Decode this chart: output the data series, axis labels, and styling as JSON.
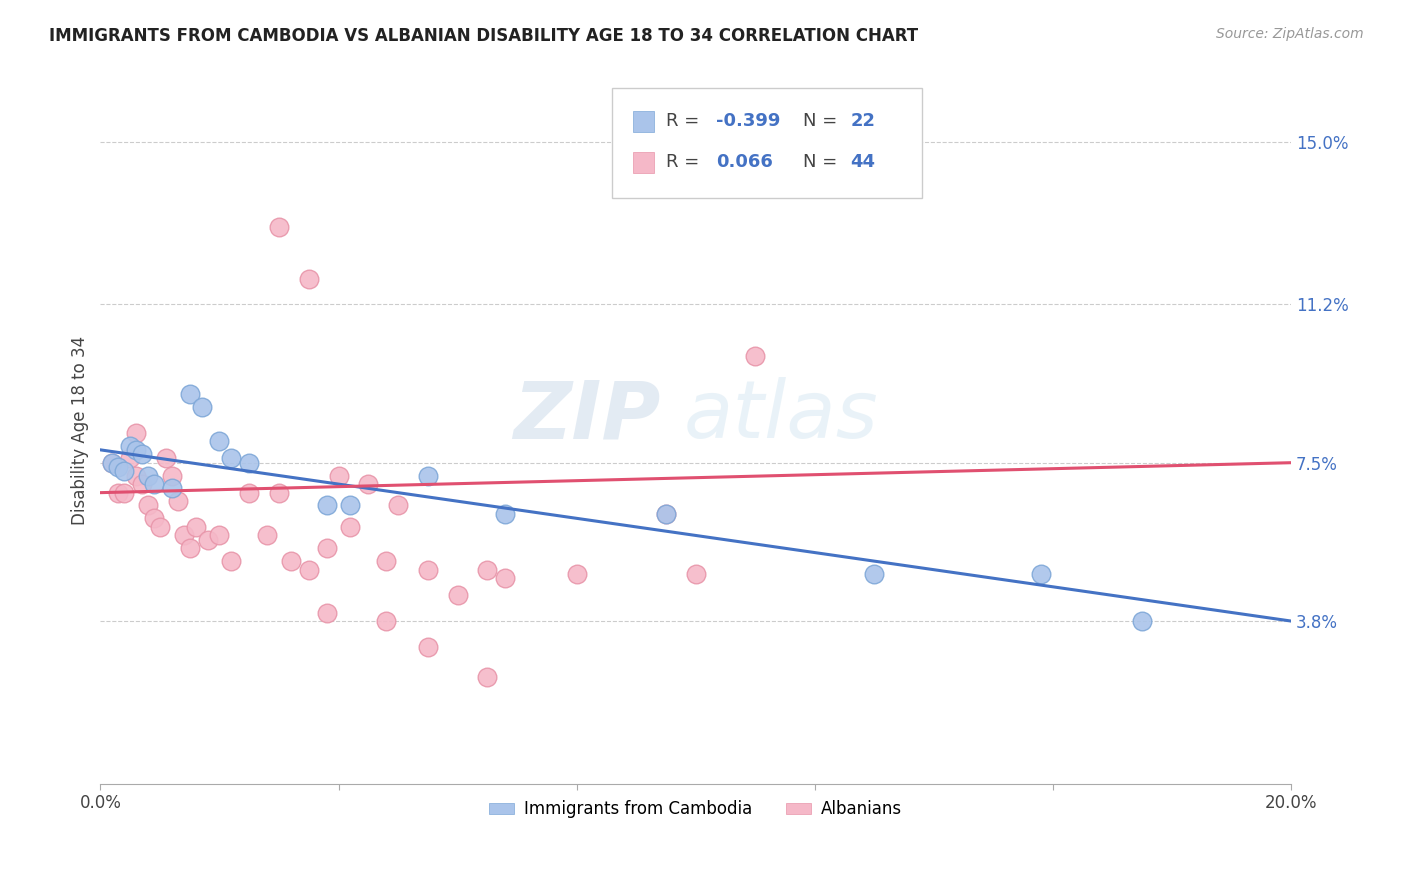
{
  "title": "IMMIGRANTS FROM CAMBODIA VS ALBANIAN DISABILITY AGE 18 TO 34 CORRELATION CHART",
  "source": "Source: ZipAtlas.com",
  "ylabel": "Disability Age 18 to 34",
  "xlim": [
    0.0,
    0.2
  ],
  "ylim": [
    0.0,
    0.165
  ],
  "y_tick_labels_right": [
    "3.8%",
    "7.5%",
    "11.2%",
    "15.0%"
  ],
  "y_tick_values_right": [
    0.038,
    0.075,
    0.112,
    0.15
  ],
  "watermark": "ZIPatlas",
  "legend_R1": "-0.399",
  "legend_N1": "22",
  "legend_R2": "0.066",
  "legend_N2": "44",
  "cambodia_color": "#aac4ea",
  "albanian_color": "#f5b8c8",
  "cambodia_edge_color": "#7fa8d8",
  "albanian_edge_color": "#e896aa",
  "cambodia_line_color": "#4472c4",
  "albanian_line_color": "#e05070",
  "background_color": "#ffffff",
  "grid_color": "#cccccc",
  "cambodia_x": [
    0.002,
    0.003,
    0.004,
    0.005,
    0.006,
    0.007,
    0.008,
    0.009,
    0.012,
    0.015,
    0.017,
    0.02,
    0.022,
    0.025,
    0.038,
    0.042,
    0.055,
    0.068,
    0.095,
    0.13,
    0.158,
    0.175
  ],
  "cambodia_y": [
    0.075,
    0.074,
    0.073,
    0.079,
    0.078,
    0.077,
    0.072,
    0.07,
    0.069,
    0.091,
    0.088,
    0.08,
    0.076,
    0.075,
    0.065,
    0.065,
    0.072,
    0.063,
    0.063,
    0.049,
    0.049,
    0.038
  ],
  "albanian_x": [
    0.002,
    0.003,
    0.004,
    0.005,
    0.006,
    0.006,
    0.007,
    0.008,
    0.009,
    0.01,
    0.011,
    0.012,
    0.013,
    0.014,
    0.015,
    0.016,
    0.018,
    0.02,
    0.022,
    0.025,
    0.028,
    0.03,
    0.032,
    0.035,
    0.038,
    0.04,
    0.042,
    0.045,
    0.048,
    0.05,
    0.055,
    0.06,
    0.065,
    0.068,
    0.08,
    0.095,
    0.1,
    0.11,
    0.03,
    0.035,
    0.038,
    0.048,
    0.055,
    0.065
  ],
  "albanian_y": [
    0.075,
    0.068,
    0.068,
    0.076,
    0.082,
    0.072,
    0.07,
    0.065,
    0.062,
    0.06,
    0.076,
    0.072,
    0.066,
    0.058,
    0.055,
    0.06,
    0.057,
    0.058,
    0.052,
    0.068,
    0.058,
    0.068,
    0.052,
    0.05,
    0.055,
    0.072,
    0.06,
    0.07,
    0.052,
    0.065,
    0.05,
    0.044,
    0.05,
    0.048,
    0.049,
    0.063,
    0.049,
    0.1,
    0.13,
    0.118,
    0.04,
    0.038,
    0.032,
    0.025
  ]
}
